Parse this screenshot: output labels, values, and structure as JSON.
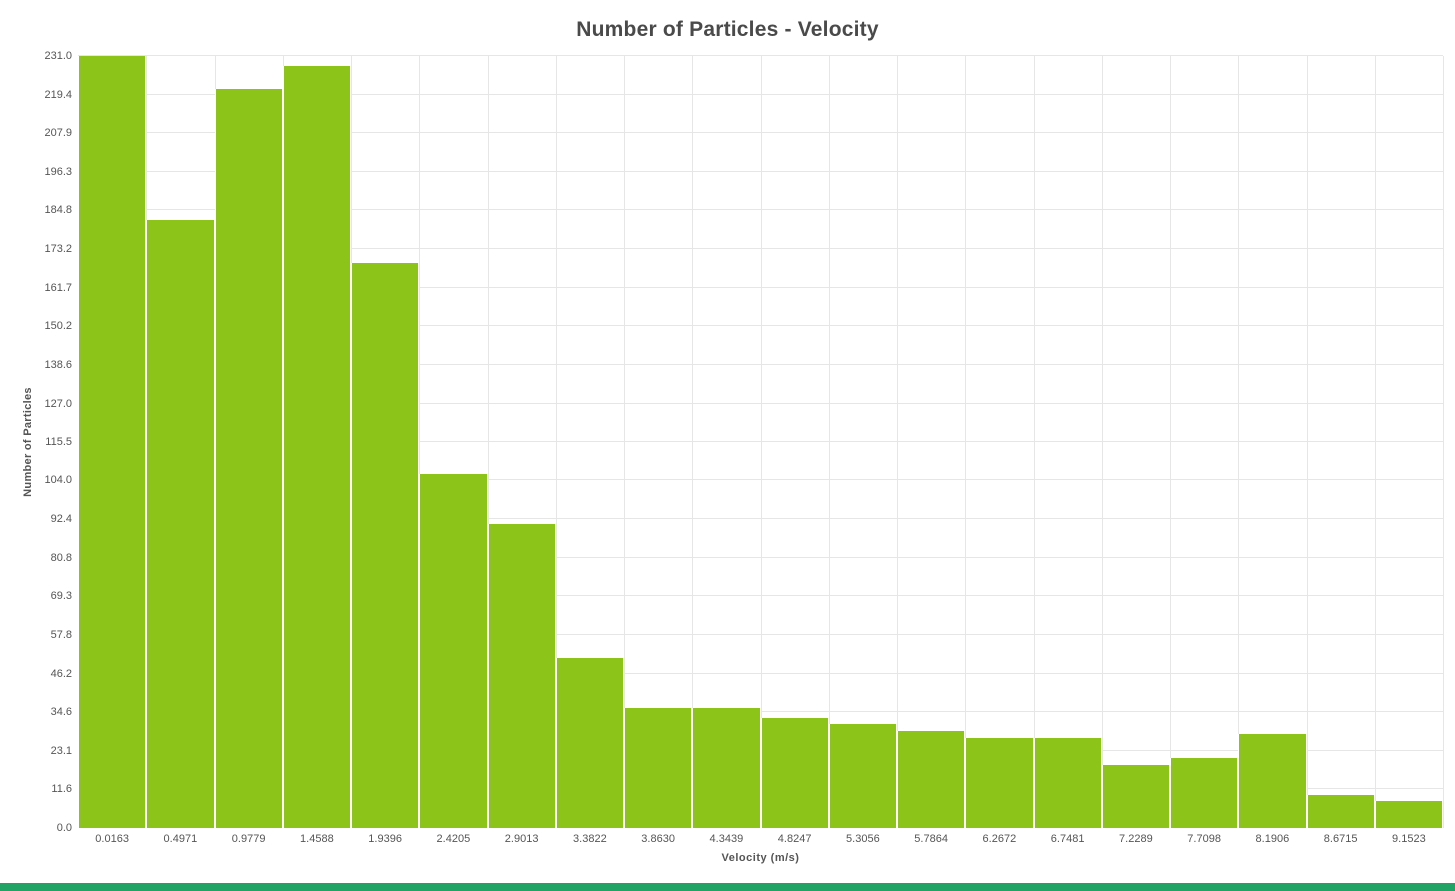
{
  "page": {
    "background": "#ffffff",
    "footer_bar_color": "#21a366"
  },
  "chart_data": {
    "type": "bar",
    "title": "Number of Particles - Velocity",
    "xlabel": "Velocity (m/s)",
    "ylabel": "Number of Particles",
    "categories": [
      "0.0163",
      "0.4971",
      "0.9779",
      "1.4588",
      "1.9396",
      "2.4205",
      "2.9013",
      "3.3822",
      "3.8630",
      "4.3439",
      "4.8247",
      "5.3056",
      "5.7864",
      "6.2672",
      "6.7481",
      "7.2289",
      "7.7098",
      "8.1906",
      "8.6715",
      "9.1523"
    ],
    "values": [
      231,
      182,
      221,
      228,
      169,
      106,
      91,
      51,
      36,
      36,
      33,
      31,
      29,
      27,
      27,
      19,
      21,
      28,
      10,
      8
    ],
    "ylim": [
      0,
      231
    ],
    "y_tick_labels": [
      "0.0",
      "11.6",
      "23.1",
      "34.6",
      "46.2",
      "57.8",
      "69.3",
      "80.8",
      "92.4",
      "104.0",
      "115.5",
      "127.0",
      "138.6",
      "150.2",
      "161.7",
      "173.2",
      "184.8",
      "196.3",
      "207.9",
      "219.4",
      "231.0"
    ],
    "bar_color": "#8dc41a",
    "grid_color": "#e6e6e6",
    "grid": true,
    "legend": false
  }
}
